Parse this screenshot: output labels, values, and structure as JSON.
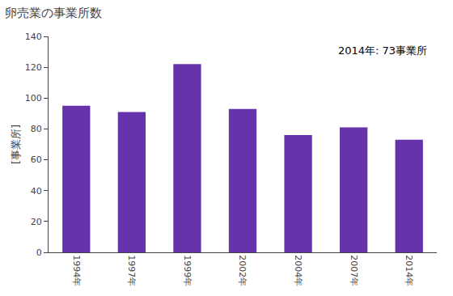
{
  "chart_data": {
    "type": "bar",
    "title": "卵売業の事業所数",
    "ylabel": "[事業所]",
    "categories": [
      "1994年",
      "1997年",
      "1999年",
      "2002年",
      "2004年",
      "2007年",
      "2014年"
    ],
    "values": [
      95,
      91,
      122,
      93,
      76,
      81,
      73
    ],
    "color": "#6633aa",
    "ylim": [
      0,
      140
    ],
    "yticks": [
      0,
      20,
      40,
      60,
      80,
      100,
      120,
      140
    ],
    "annotation": "2014年: 73事業所",
    "grid": false
  }
}
